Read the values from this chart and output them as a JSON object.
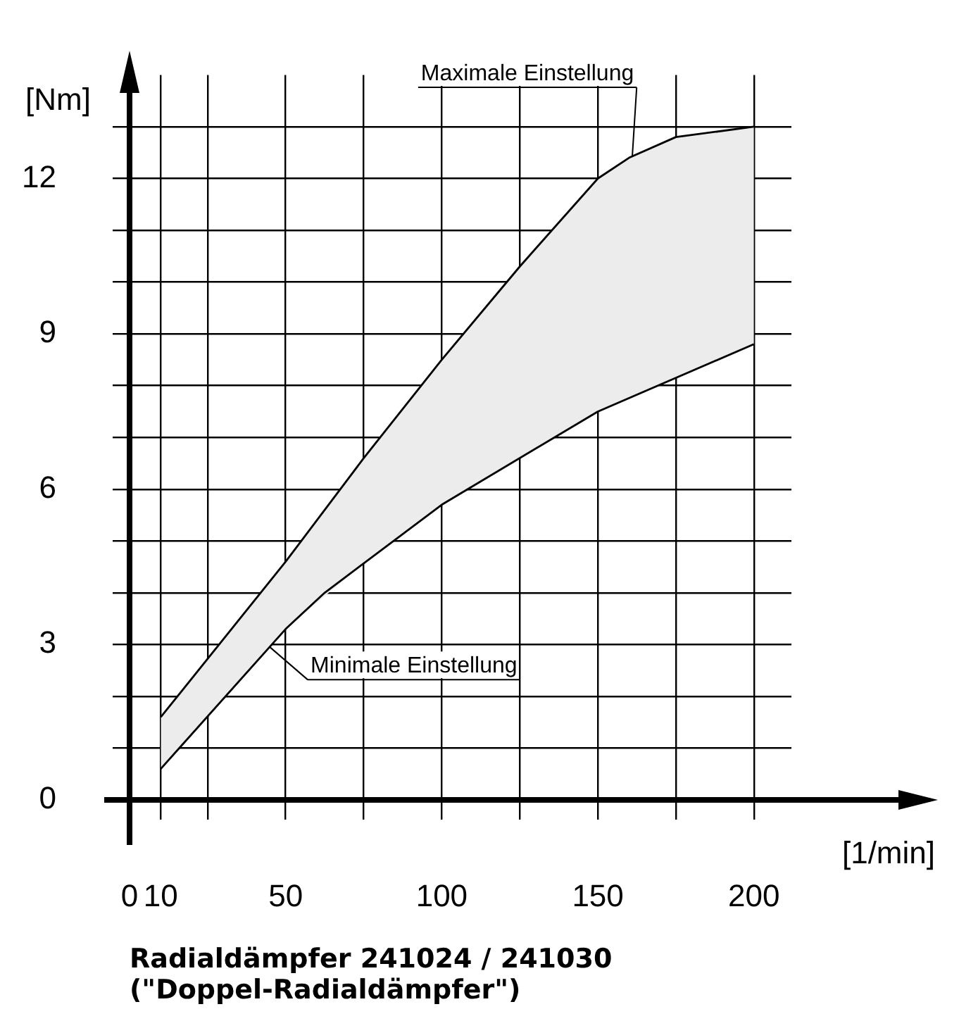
{
  "chart_data": {
    "type": "line",
    "title": "Radialdämpfer 241024 / 241030\n(\"Doppel-Radialdämpfer\")",
    "xlabel": "[1/min]",
    "ylabel": "[Nm]",
    "series": [
      {
        "x": [
          10,
          50,
          75,
          100,
          125,
          150,
          160,
          175,
          200
        ],
        "values": [
          1.6,
          4.6,
          6.6,
          8.5,
          10.3,
          12,
          12.4,
          12.8,
          13
        ],
        "color": "#000000",
        "lower": [
          0.6,
          3.3,
          4.57,
          5.7,
          6.6,
          7.5,
          7.76,
          8.15,
          8.8
        ],
        "upper": [
          1.6,
          4.6,
          6.6,
          8.5,
          10.3,
          12,
          12.4,
          12.8,
          13
        ]
      },
      {
        "x": [
          10,
          50,
          62.5,
          100,
          150,
          200
        ],
        "values": [
          0.6,
          3.3,
          4,
          5.7,
          7.5,
          8.8
        ],
        "color": "#000000"
      }
    ],
    "annotations": [
      {
        "text": "Maximale Einstellung",
        "x": 161,
        "y": 12.4
      },
      {
        "text": "Minimale Einstellung",
        "x": 44,
        "y": 3
      }
    ],
    "xlim": [
      0,
      212
    ],
    "xticks": [
      0,
      10,
      {
        "value": 25,
        "label": null
      },
      50,
      {
        "value": 75,
        "label": null
      },
      100,
      {
        "value": 125,
        "label": null
      },
      150,
      {
        "value": 175,
        "label": null
      },
      200
    ],
    "ylim": [
      0,
      14
    ],
    "yticks": [
      0,
      {
        "value": 1,
        "label": null
      },
      {
        "value": 2,
        "label": null
      },
      3,
      {
        "value": 4,
        "label": null
      },
      {
        "value": 5,
        "label": null
      },
      6,
      {
        "value": 7,
        "label": null
      },
      {
        "value": 8,
        "label": null
      },
      9,
      {
        "value": 10,
        "label": null
      },
      {
        "value": 11,
        "label": null
      },
      12,
      {
        "value": 13,
        "label": null
      }
    ],
    "grid": true,
    "legend": false,
    "marker": "none",
    "line_style": "solid"
  }
}
